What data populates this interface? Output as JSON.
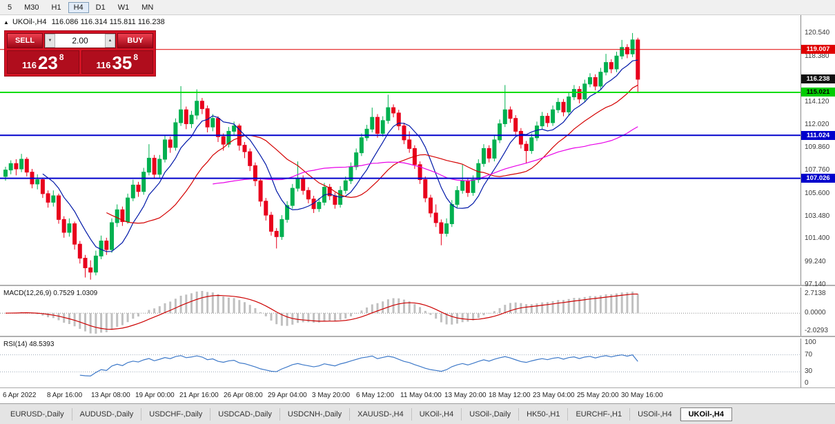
{
  "toolbar": {
    "timeframes": [
      {
        "label": "5",
        "active": false
      },
      {
        "label": "M30",
        "active": false
      },
      {
        "label": "H1",
        "active": false
      },
      {
        "label": "H4",
        "active": true
      },
      {
        "label": "D1",
        "active": false
      },
      {
        "label": "W1",
        "active": false
      },
      {
        "label": "MN",
        "active": false
      }
    ]
  },
  "chart_header": {
    "symbol": "UKOil-,H4",
    "ohlc": "116.086 116.314 115.811 116.238"
  },
  "trade_widget": {
    "sell_label": "SELL",
    "buy_label": "BUY",
    "volume": "2.00",
    "sell_price": {
      "head": "116",
      "big": "23",
      "sup": "8"
    },
    "buy_price": {
      "head": "116",
      "big": "35",
      "sup": "8"
    }
  },
  "price_axis": {
    "labels": [
      "120.540",
      "118.380",
      "116.220",
      "114.120",
      "112.020",
      "109.860",
      "107.760",
      "105.600",
      "103.480",
      "101.400",
      "99.240",
      "97.140"
    ],
    "badges": [
      {
        "text": "119.007",
        "bg": "#e00000",
        "fg": "#ffffff"
      },
      {
        "text": "116.238",
        "bg": "#111111",
        "fg": "#ffffff"
      },
      {
        "text": "115.021",
        "bg": "#00cc00",
        "fg": "#000000"
      },
      {
        "text": "111.024",
        "bg": "#0000cc",
        "fg": "#ffffff"
      },
      {
        "text": "107.026",
        "bg": "#0000cc",
        "fg": "#ffffff"
      }
    ]
  },
  "indicators": {
    "macd": {
      "label": "MACD(12,26,9) 0.7529 1.0309",
      "axis_labels": [
        "2.7138",
        "0.0000",
        "-2.0293"
      ]
    },
    "rsi": {
      "label": "RSI(14) 48.5393",
      "axis_labels": [
        "100",
        "70",
        "30",
        "0"
      ],
      "levels": [
        70,
        30
      ]
    }
  },
  "tabs": [
    {
      "label": "EURUSD-,Daily",
      "active": false
    },
    {
      "label": "AUDUSD-,Daily",
      "active": false
    },
    {
      "label": "USDCHF-,Daily",
      "active": false
    },
    {
      "label": "USDCAD-,Daily",
      "active": false
    },
    {
      "label": "USDCNH-,Daily",
      "active": false
    },
    {
      "label": "XAUUSD-,H4",
      "active": false
    },
    {
      "label": "UKOil-,H4",
      "active": false
    },
    {
      "label": "USOil-,Daily",
      "active": false
    },
    {
      "label": "HK50-,H1",
      "active": false
    },
    {
      "label": "EURCHF-,H1",
      "active": false
    },
    {
      "label": "USOil-,H4",
      "active": false
    },
    {
      "label": "UKOil-,H4",
      "active": true
    }
  ],
  "chart_data": {
    "type": "candlestick",
    "symbol": "UKOil-",
    "timeframe": "H4",
    "title": "UKOil-,H4",
    "price_range": [
      97.0,
      122.2
    ],
    "x_labels": [
      "6 Apr 2022",
      "8 Apr 16:00",
      "13 Apr 08:00",
      "19 Apr 00:00",
      "21 Apr 16:00",
      "26 Apr 08:00",
      "29 Apr 04:00",
      "3 May 20:00",
      "6 May 12:00",
      "11 May 04:00",
      "13 May 20:00",
      "18 May 12:00",
      "23 May 04:00",
      "25 May 20:00",
      "30 May 16:00"
    ],
    "hlines": [
      {
        "value": 119.007,
        "color": "#e00000",
        "width": 1
      },
      {
        "value": 115.021,
        "color": "#00dd00",
        "width": 2
      },
      {
        "value": 111.024,
        "color": "#0000cc",
        "width": 2
      },
      {
        "value": 107.026,
        "color": "#0000cc",
        "width": 2
      }
    ],
    "moving_averages": [
      {
        "period": 8,
        "color": "#0018a8"
      },
      {
        "period": 20,
        "color": "#d40000"
      },
      {
        "period": 40,
        "color": "#e800e8"
      }
    ],
    "macd": {
      "fast": 12,
      "slow": 26,
      "signal": 9,
      "current_macd": 0.7529,
      "current_signal": 1.0309
    },
    "rsi": {
      "period": 14,
      "current": 48.5393
    },
    "colors": {
      "up": "#00b050",
      "down": "#e8001c",
      "hist": "#c0c0c0",
      "macd_signal": "#cc0000",
      "rsi_line": "#3c78c8"
    },
    "candles": [
      [
        107.2,
        108.1,
        106.8,
        107.8
      ],
      [
        107.8,
        108.7,
        107.4,
        108.4
      ],
      [
        108.4,
        108.8,
        107.3,
        107.9
      ],
      [
        107.9,
        109.3,
        107.6,
        108.8
      ],
      [
        108.8,
        109.0,
        107.2,
        107.6
      ],
      [
        107.6,
        107.9,
        106.1,
        106.5
      ],
      [
        106.5,
        107.4,
        106.0,
        106.9
      ],
      [
        106.9,
        107.1,
        105.2,
        105.6
      ],
      [
        105.6,
        105.9,
        104.3,
        104.8
      ],
      [
        104.8,
        105.9,
        104.4,
        105.4
      ],
      [
        105.4,
        105.6,
        102.8,
        103.2
      ],
      [
        103.2,
        103.5,
        101.5,
        102.0
      ],
      [
        102.0,
        103.3,
        101.6,
        102.8
      ],
      [
        102.8,
        103.0,
        100.4,
        100.9
      ],
      [
        100.9,
        101.2,
        99.1,
        99.6
      ],
      [
        99.6,
        99.9,
        97.8,
        98.7
      ],
      [
        98.7,
        99.4,
        97.6,
        98.3
      ],
      [
        98.3,
        100.3,
        98.0,
        99.8
      ],
      [
        99.8,
        101.7,
        99.5,
        101.2
      ],
      [
        101.2,
        101.5,
        99.9,
        100.4
      ],
      [
        100.4,
        103.3,
        100.1,
        102.9
      ],
      [
        102.9,
        104.6,
        102.5,
        104.1
      ],
      [
        104.1,
        104.4,
        102.6,
        103.0
      ],
      [
        103.0,
        105.6,
        102.8,
        105.2
      ],
      [
        105.2,
        106.9,
        104.9,
        106.4
      ],
      [
        106.4,
        106.7,
        105.3,
        105.8
      ],
      [
        105.8,
        108.0,
        105.5,
        107.6
      ],
      [
        107.6,
        110.2,
        107.3,
        108.9
      ],
      [
        108.9,
        109.2,
        107.0,
        107.4
      ],
      [
        107.4,
        109.2,
        107.1,
        108.8
      ],
      [
        108.8,
        111.0,
        108.5,
        110.6
      ],
      [
        110.6,
        110.9,
        109.4,
        109.9
      ],
      [
        109.9,
        112.6,
        109.6,
        112.2
      ],
      [
        112.2,
        115.6,
        111.9,
        113.4
      ],
      [
        113.4,
        113.7,
        111.6,
        112.1
      ],
      [
        112.1,
        113.3,
        111.7,
        112.9
      ],
      [
        112.9,
        115.3,
        112.5,
        114.2
      ],
      [
        114.2,
        114.5,
        113.0,
        113.5
      ],
      [
        113.5,
        113.8,
        111.3,
        111.8
      ],
      [
        111.8,
        113.0,
        111.4,
        112.6
      ],
      [
        112.6,
        112.8,
        110.4,
        110.9
      ],
      [
        110.9,
        111.2,
        109.6,
        110.2
      ],
      [
        110.2,
        111.8,
        109.9,
        111.4
      ],
      [
        111.4,
        112.3,
        111.0,
        111.9
      ],
      [
        111.9,
        112.1,
        109.6,
        110.1
      ],
      [
        110.1,
        110.4,
        108.9,
        109.5
      ],
      [
        109.5,
        109.8,
        107.7,
        108.2
      ],
      [
        108.2,
        108.5,
        106.3,
        106.8
      ],
      [
        106.8,
        107.1,
        104.4,
        104.9
      ],
      [
        104.9,
        105.2,
        103.1,
        103.6
      ],
      [
        103.6,
        103.9,
        101.7,
        102.1
      ],
      [
        102.1,
        102.4,
        100.5,
        101.6
      ],
      [
        101.6,
        103.6,
        101.3,
        103.2
      ],
      [
        103.2,
        104.9,
        102.9,
        104.5
      ],
      [
        104.5,
        106.5,
        104.2,
        106.1
      ],
      [
        106.1,
        108.6,
        105.8,
        107.0
      ],
      [
        107.0,
        107.3,
        105.5,
        105.9
      ],
      [
        105.9,
        106.2,
        104.7,
        105.1
      ],
      [
        105.1,
        105.4,
        103.8,
        104.2
      ],
      [
        104.2,
        105.2,
        103.9,
        104.8
      ],
      [
        104.8,
        106.6,
        104.5,
        106.2
      ],
      [
        106.2,
        106.5,
        105.0,
        105.4
      ],
      [
        105.4,
        105.7,
        104.2,
        104.6
      ],
      [
        104.6,
        106.3,
        104.3,
        105.9
      ],
      [
        105.9,
        107.2,
        105.6,
        106.8
      ],
      [
        106.8,
        108.5,
        106.5,
        108.1
      ],
      [
        108.1,
        109.8,
        107.8,
        109.4
      ],
      [
        109.4,
        111.2,
        109.1,
        110.8
      ],
      [
        110.8,
        112.0,
        110.5,
        111.6
      ],
      [
        111.6,
        113.6,
        111.3,
        112.7
      ],
      [
        112.7,
        113.0,
        110.8,
        111.2
      ],
      [
        111.2,
        112.8,
        110.9,
        112.4
      ],
      [
        112.4,
        114.8,
        112.1,
        113.6
      ],
      [
        113.6,
        113.9,
        112.7,
        113.1
      ],
      [
        113.1,
        113.4,
        111.5,
        111.9
      ],
      [
        111.9,
        112.2,
        110.2,
        110.6
      ],
      [
        110.6,
        111.4,
        109.4,
        109.8
      ],
      [
        109.8,
        110.1,
        107.9,
        108.3
      ],
      [
        108.3,
        108.6,
        106.5,
        106.9
      ],
      [
        106.9,
        107.2,
        104.8,
        105.2
      ],
      [
        105.2,
        105.5,
        103.4,
        103.8
      ],
      [
        103.8,
        104.6,
        102.5,
        102.9
      ],
      [
        102.9,
        103.2,
        100.8,
        101.9
      ],
      [
        101.9,
        103.3,
        101.6,
        102.8
      ],
      [
        102.8,
        105.0,
        102.5,
        104.6
      ],
      [
        104.6,
        106.3,
        104.3,
        105.9
      ],
      [
        105.9,
        108.3,
        105.6,
        106.8
      ],
      [
        106.8,
        107.1,
        105.3,
        105.7
      ],
      [
        105.7,
        107.3,
        105.4,
        106.9
      ],
      [
        106.9,
        108.8,
        106.6,
        108.4
      ],
      [
        108.4,
        110.2,
        108.1,
        109.8
      ],
      [
        109.8,
        110.1,
        108.5,
        108.9
      ],
      [
        108.9,
        111.0,
        108.6,
        110.6
      ],
      [
        110.6,
        112.5,
        110.3,
        112.1
      ],
      [
        112.1,
        115.7,
        111.8,
        113.4
      ],
      [
        113.4,
        113.7,
        112.2,
        112.6
      ],
      [
        112.6,
        112.9,
        111.0,
        111.4
      ],
      [
        111.4,
        111.7,
        109.8,
        110.2
      ],
      [
        110.2,
        110.5,
        108.4,
        109.6
      ],
      [
        109.6,
        111.2,
        109.3,
        110.8
      ],
      [
        110.8,
        112.3,
        110.5,
        111.9
      ],
      [
        111.9,
        113.2,
        111.6,
        112.8
      ],
      [
        112.8,
        113.1,
        111.8,
        112.2
      ],
      [
        112.2,
        113.8,
        111.9,
        113.4
      ],
      [
        113.4,
        114.5,
        113.1,
        114.1
      ],
      [
        114.1,
        114.4,
        112.8,
        113.2
      ],
      [
        113.2,
        115.0,
        112.9,
        114.6
      ],
      [
        114.6,
        115.7,
        114.3,
        115.3
      ],
      [
        115.3,
        115.6,
        114.0,
        114.4
      ],
      [
        114.4,
        116.2,
        114.1,
        115.8
      ],
      [
        115.8,
        116.8,
        115.5,
        116.4
      ],
      [
        116.4,
        116.7,
        115.2,
        115.6
      ],
      [
        115.6,
        117.3,
        115.3,
        116.9
      ],
      [
        116.9,
        118.6,
        116.6,
        117.8
      ],
      [
        117.8,
        118.1,
        116.8,
        117.2
      ],
      [
        117.2,
        118.8,
        116.9,
        118.4
      ],
      [
        118.4,
        119.9,
        118.1,
        119.2
      ],
      [
        119.2,
        119.5,
        118.2,
        118.6
      ],
      [
        118.6,
        120.54,
        118.3,
        119.9
      ],
      [
        119.9,
        120.1,
        114.95,
        116.24
      ]
    ]
  }
}
